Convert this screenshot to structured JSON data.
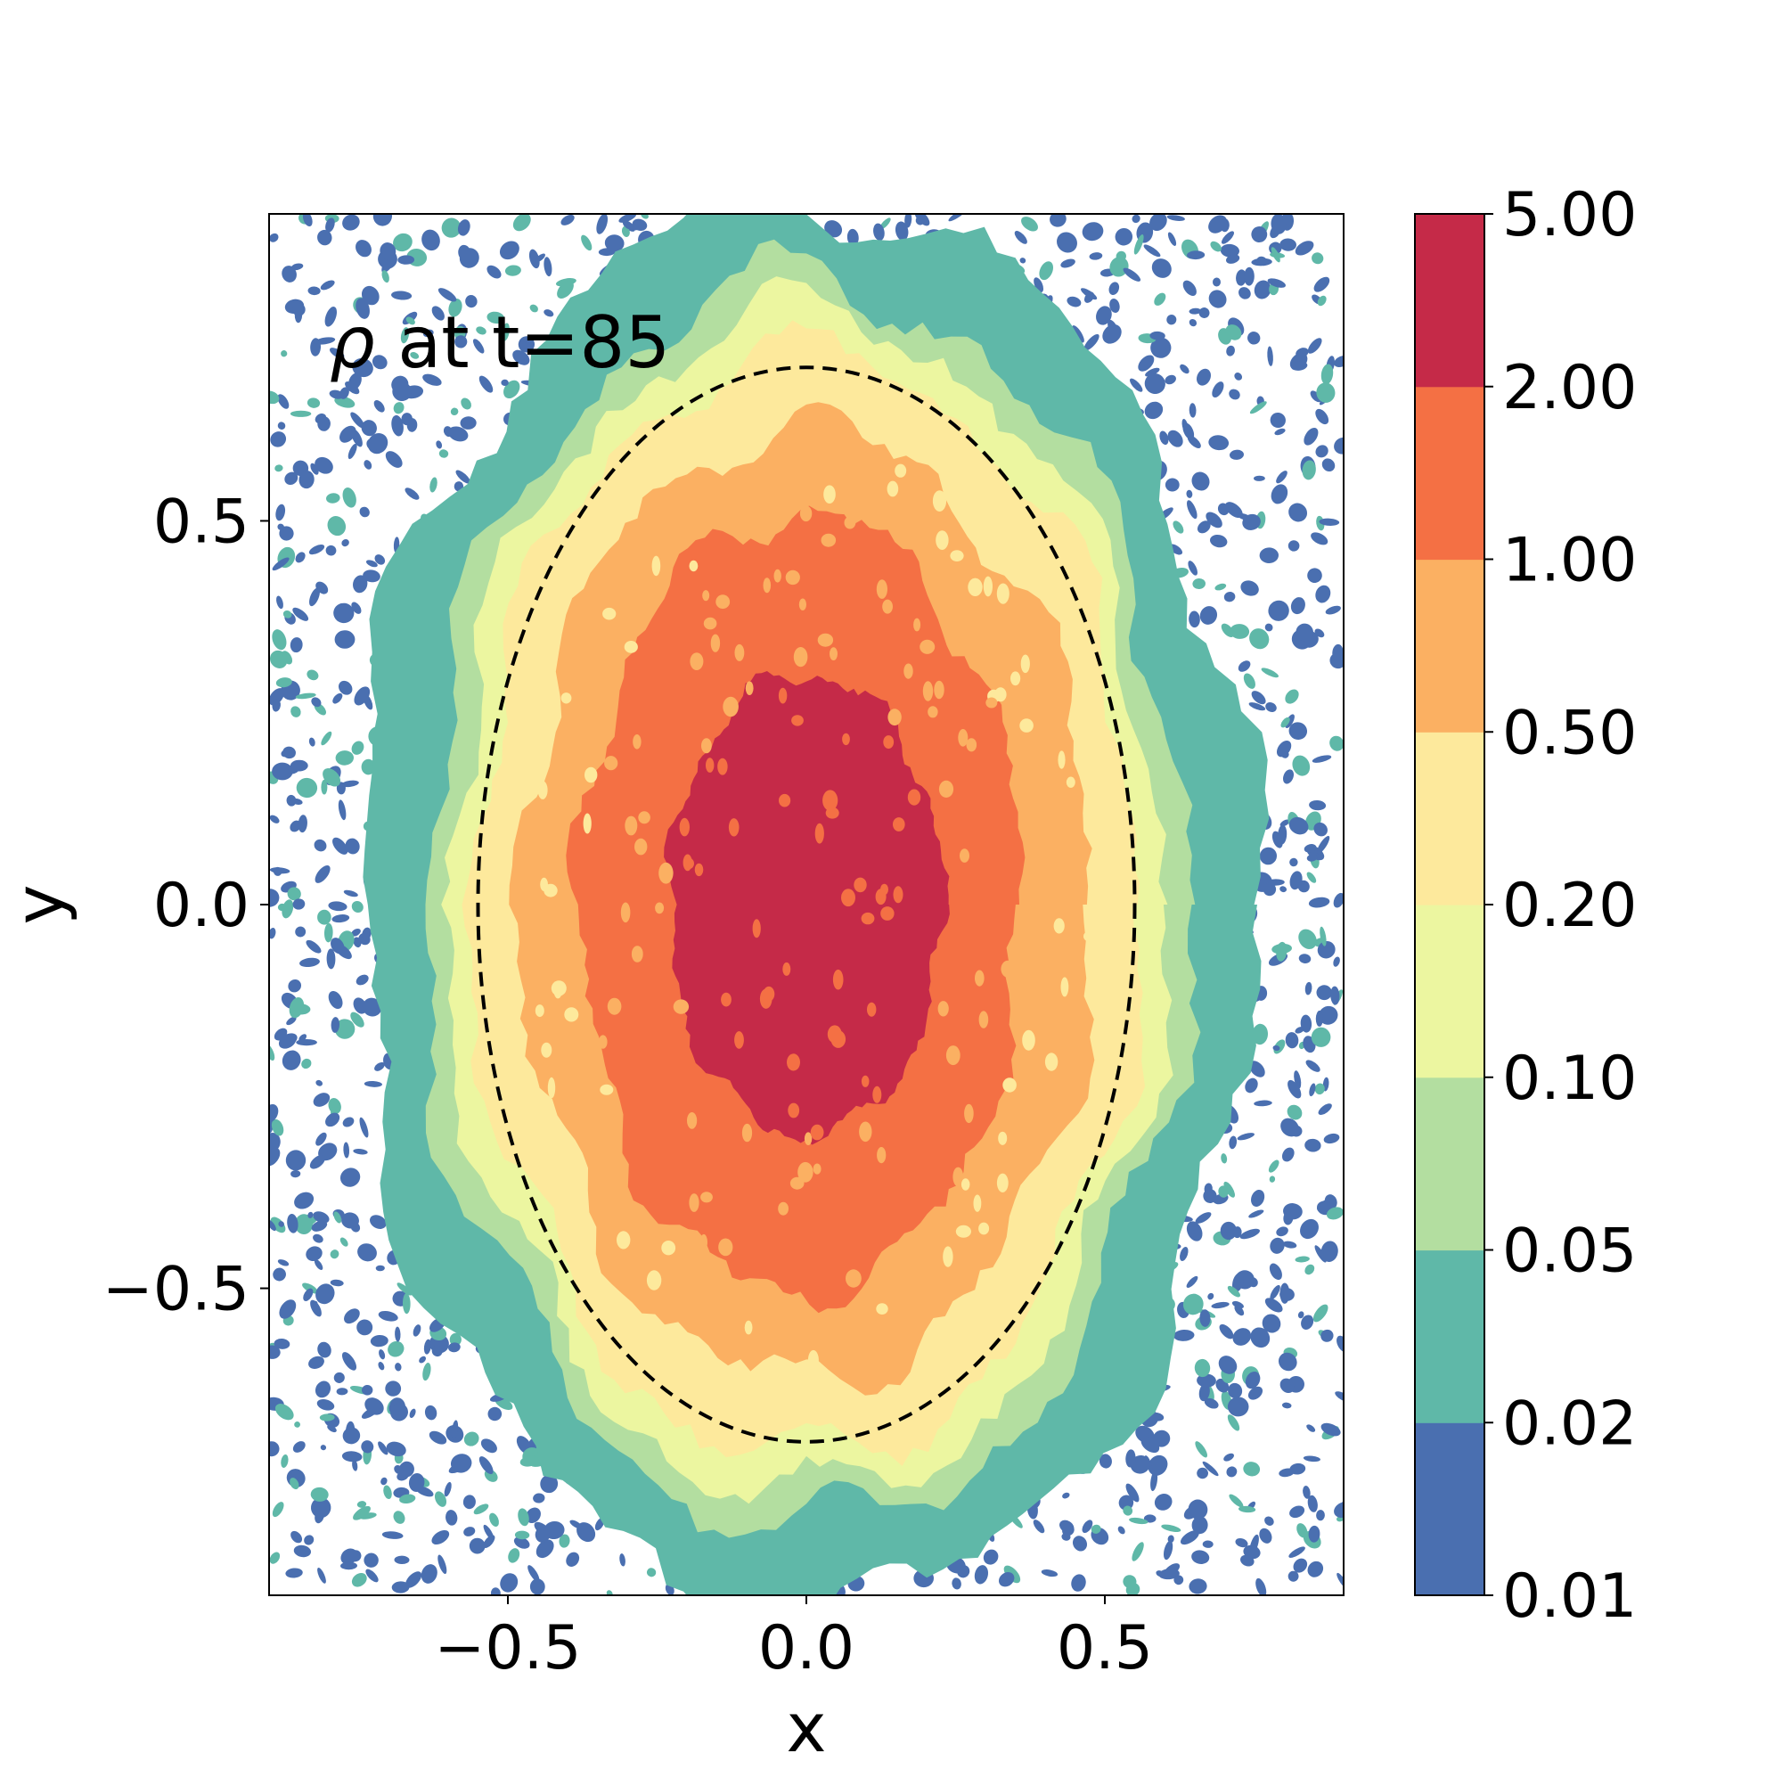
{
  "chart_data": {
    "type": "heatmap",
    "subtype": "filled-contour",
    "annotation": {
      "symbol": "ρ",
      "text": " at t=85"
    },
    "xlabel": "x",
    "ylabel": "y",
    "xlim": [
      -0.9,
      0.9
    ],
    "ylim": [
      -0.9,
      0.9
    ],
    "xticks": [
      {
        "value": -0.5,
        "label": "−0.5"
      },
      {
        "value": 0.0,
        "label": "0.0"
      },
      {
        "value": 0.5,
        "label": "0.5"
      }
    ],
    "yticks": [
      {
        "value": -0.5,
        "label": "−0.5"
      },
      {
        "value": 0.0,
        "label": "0.0"
      },
      {
        "value": 0.5,
        "label": "0.5"
      }
    ],
    "colorbar": {
      "levels": [
        0.01,
        0.02,
        0.05,
        0.1,
        0.2,
        0.5,
        1.0,
        2.0,
        5.0
      ],
      "labels": [
        "0.01",
        "0.02",
        "0.05",
        "0.10",
        "0.20",
        "0.50",
        "1.00",
        "2.00",
        "5.00"
      ],
      "colors": [
        "#4a6fb0",
        "#5fb8a8",
        "#b3dea0",
        "#ecf6a0",
        "#fde99c",
        "#fbb062",
        "#f47044",
        "#c52a48"
      ]
    },
    "contour_regions": [
      {
        "level": 5.0,
        "color": "#c52a48",
        "rx": 0.23,
        "ry": 0.3,
        "cx": 0.0,
        "cy": 0.0
      },
      {
        "level": 2.0,
        "color": "#f47044",
        "rx": 0.37,
        "ry": 0.51,
        "cx": -0.01,
        "cy": 0.0
      },
      {
        "level": 1.0,
        "color": "#fbb062",
        "rx": 0.48,
        "ry": 0.62,
        "cx": 0.0,
        "cy": 0.0
      },
      {
        "level": 0.5,
        "color": "#fde99c",
        "rx": 0.56,
        "ry": 0.72,
        "cx": 0.0,
        "cy": 0.0
      },
      {
        "level": 0.2,
        "color": "#ecf6a0",
        "rx": 0.6,
        "ry": 0.77,
        "cx": 0.0,
        "cy": 0.0
      },
      {
        "level": 0.1,
        "color": "#b3dea0",
        "rx": 0.64,
        "ry": 0.81,
        "cx": 0.0,
        "cy": 0.0
      },
      {
        "level": 0.05,
        "color": "#5fb8a8",
        "rx": 0.75,
        "ry": 0.92,
        "cx": 0.0,
        "cy": 0.0
      }
    ],
    "reference_ellipse": {
      "cx": 0.0,
      "cy": 0.0,
      "rx": 0.55,
      "ry": 0.7,
      "style": "dashed",
      "color": "#000000"
    },
    "background_noise_color": "#4a6fb0",
    "grid": false
  }
}
